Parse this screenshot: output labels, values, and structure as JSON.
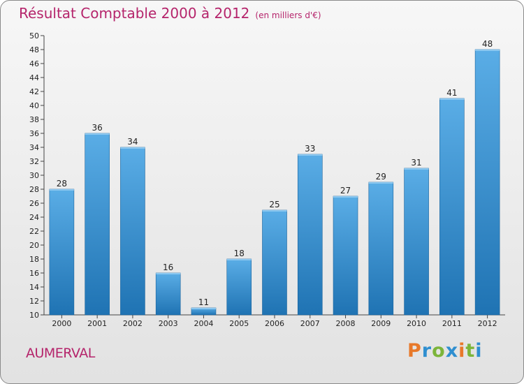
{
  "title": "Résultat Comptable 2000 à 2012",
  "subtitle": "(en milliers d'€)",
  "commune": "AUMERVAL",
  "logo": [
    "P",
    "r",
    "o",
    "x",
    "i",
    "t",
    "i"
  ],
  "colors": {
    "title": "#b5246b",
    "bar_top": "#5aade6",
    "bar_bottom": "#1f73b3",
    "logo": [
      "#e8792a",
      "#2f8fd0",
      "#7cb53a",
      "#2f8fd0",
      "#e8792a",
      "#7cb53a",
      "#2f8fd0"
    ]
  },
  "chart_data": {
    "type": "bar",
    "title": "Résultat Comptable 2000 à 2012",
    "ylabel": "en milliers d'€",
    "xlabel": "",
    "categories": [
      "2000",
      "2001",
      "2002",
      "2003",
      "2004",
      "2005",
      "2006",
      "2007",
      "2008",
      "2009",
      "2010",
      "2011",
      "2012"
    ],
    "values": [
      28,
      36,
      34,
      16,
      11,
      18,
      25,
      33,
      27,
      29,
      31,
      41,
      48
    ],
    "ylim": [
      10,
      50
    ],
    "yticks": [
      10,
      12,
      14,
      16,
      18,
      20,
      22,
      24,
      26,
      28,
      30,
      32,
      34,
      36,
      38,
      40,
      42,
      44,
      46,
      48,
      50
    ],
    "grid": false
  }
}
